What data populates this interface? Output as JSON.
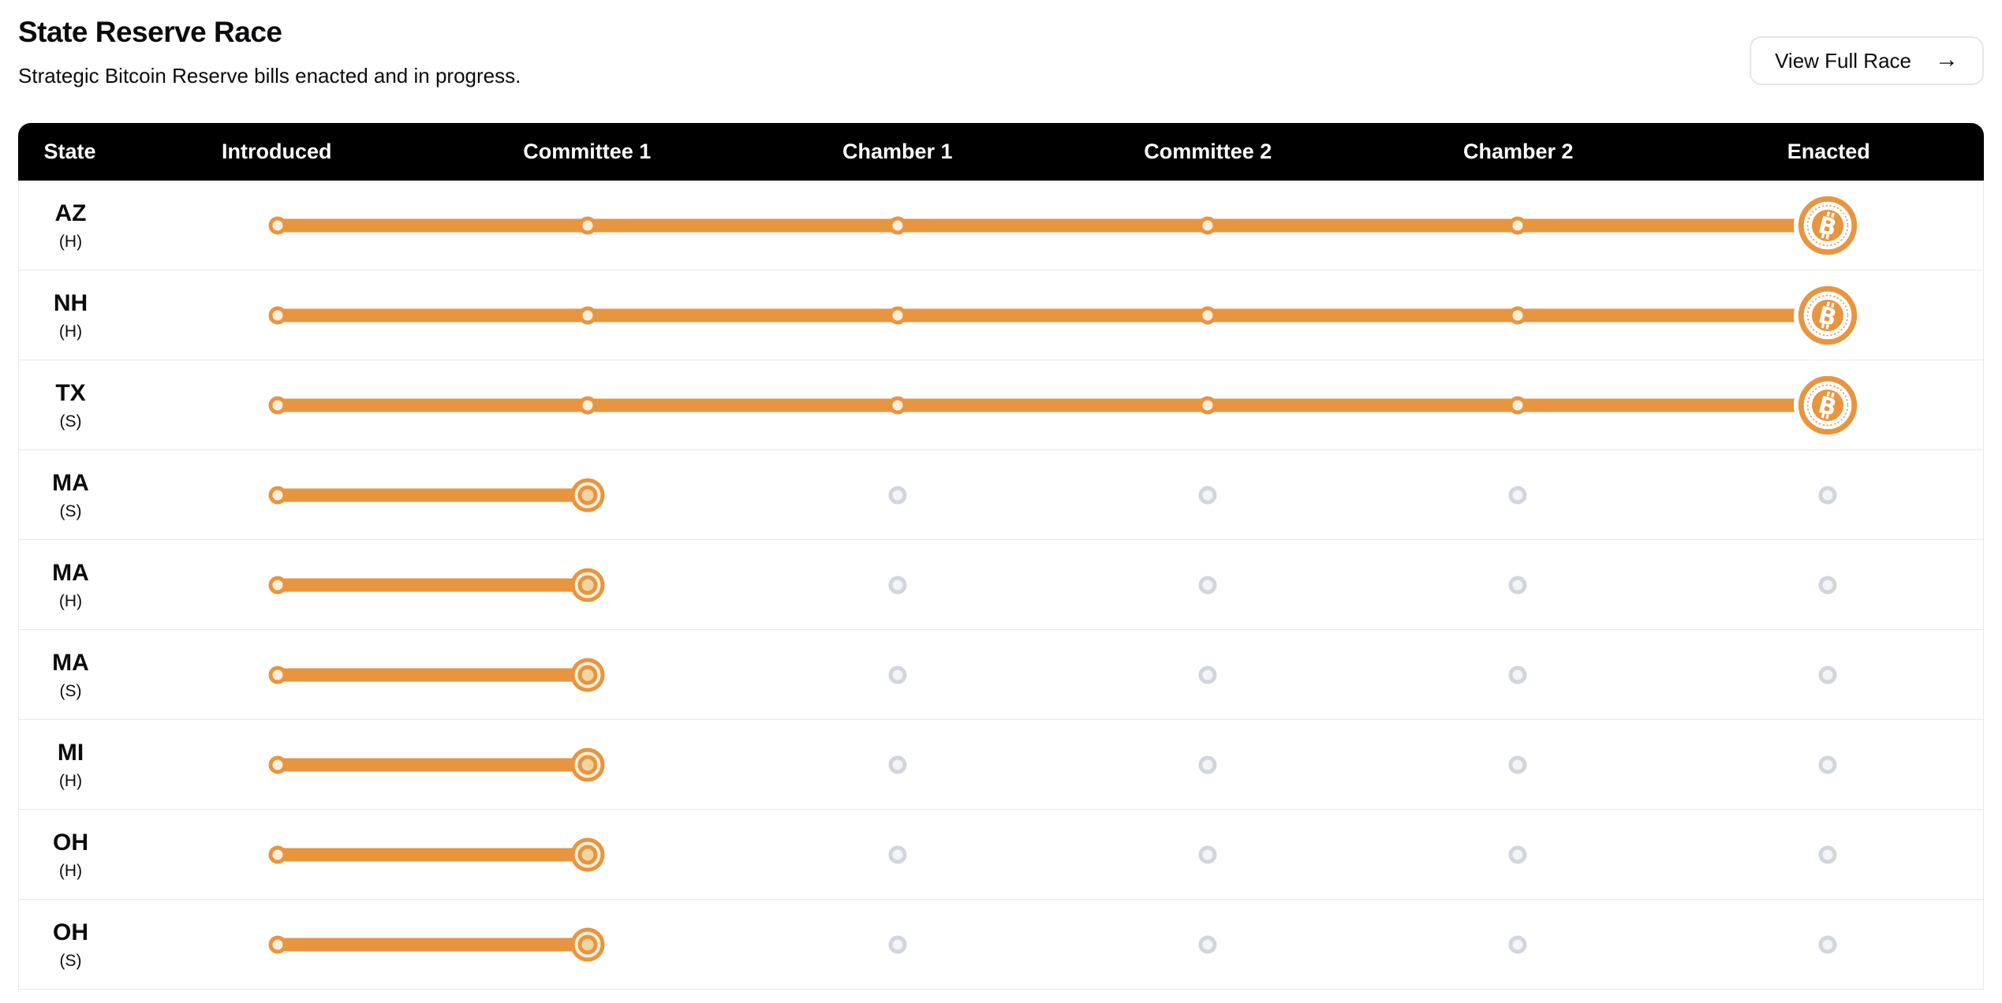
{
  "header": {
    "title": "State Reserve Race",
    "subtitle": "Strategic Bitcoin Reserve bills enacted and in progress.",
    "button_label": "View Full Race",
    "arrow_icon": "→"
  },
  "colors": {
    "orange": "#E8953F",
    "orange_fill": "#FCEEDC",
    "bullseye_center": "#F1D5A3",
    "bullseye_gap": "#F9EFDC",
    "gray_border": "#D2D5DC",
    "gray_fill": "#F3F4F6",
    "separator": "#E7E8EB",
    "header_bg": "#000000",
    "text": "#0B0B0E"
  },
  "table": {
    "columns": [
      "State",
      "Introduced",
      "Committee 1",
      "Chamber 1",
      "Committee 2",
      "Chamber 2",
      "Enacted"
    ],
    "stages": [
      "Introduced",
      "Committee 1",
      "Chamber 1",
      "Committee 2",
      "Chamber 2",
      "Enacted"
    ],
    "rows": [
      {
        "state": "AZ",
        "chamber": "(H)",
        "status": "enacted",
        "stage_index": 5
      },
      {
        "state": "NH",
        "chamber": "(H)",
        "status": "enacted",
        "stage_index": 5
      },
      {
        "state": "TX",
        "chamber": "(S)",
        "status": "enacted",
        "stage_index": 5
      },
      {
        "state": "MA",
        "chamber": "(S)",
        "status": "in_progress",
        "stage_index": 1
      },
      {
        "state": "MA",
        "chamber": "(H)",
        "status": "in_progress",
        "stage_index": 1
      },
      {
        "state": "MA",
        "chamber": "(S)",
        "status": "in_progress",
        "stage_index": 1
      },
      {
        "state": "MI",
        "chamber": "(H)",
        "status": "in_progress",
        "stage_index": 1
      },
      {
        "state": "OH",
        "chamber": "(H)",
        "status": "in_progress",
        "stage_index": 1
      },
      {
        "state": "OH",
        "chamber": "(S)",
        "status": "in_progress",
        "stage_index": 1
      }
    ]
  }
}
